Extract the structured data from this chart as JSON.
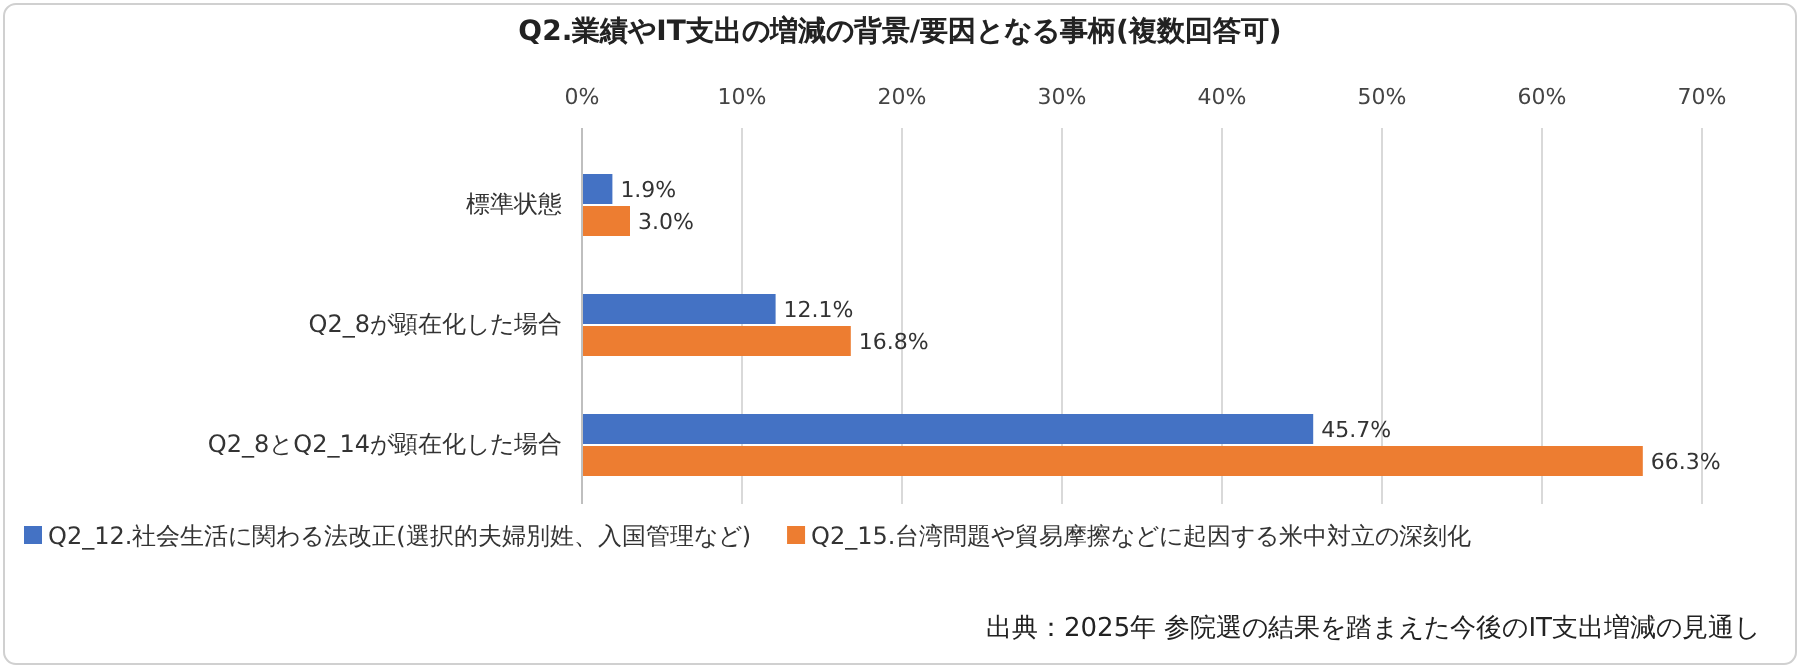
{
  "chart_data": {
    "type": "bar",
    "orientation": "horizontal",
    "title": "Q2.業績やIT支出の増減の背景/要因となる事柄(複数回答可)",
    "categories": [
      "標準状態",
      "Q2_8が顕在化した場合",
      "Q2_8とQ2_14が顕在化した場合"
    ],
    "series": [
      {
        "name": "Q2_12.社会生活に関わる法改正(選択的夫婦別姓、入国管理など)",
        "color": "#4472c4",
        "values": [
          1.9,
          12.1,
          45.7
        ],
        "value_labels": [
          "1.9%",
          "12.1%",
          "45.7%"
        ]
      },
      {
        "name": "Q2_15.台湾問題や貿易摩擦などに起因する米中対立の深刻化",
        "color": "#ed7d31",
        "values": [
          3.0,
          16.8,
          66.3
        ],
        "value_labels": [
          "3.0%",
          "16.8%",
          "66.3%"
        ]
      }
    ],
    "xlim": [
      0,
      70
    ],
    "xticks": [
      {
        "value": 0,
        "label": "0%"
      },
      {
        "value": 10,
        "label": "10%"
      },
      {
        "value": 20,
        "label": "20%"
      },
      {
        "value": 30,
        "label": "30%"
      },
      {
        "value": 40,
        "label": "40%"
      },
      {
        "value": 50,
        "label": "50%"
      },
      {
        "value": 60,
        "label": "60%"
      },
      {
        "value": 70,
        "label": "70%"
      }
    ],
    "grid": "x",
    "legend": "bottom",
    "annotations": [
      "出典：2025年 参院選の結果を踏まえた今後のIT支出増減の見通し"
    ]
  }
}
